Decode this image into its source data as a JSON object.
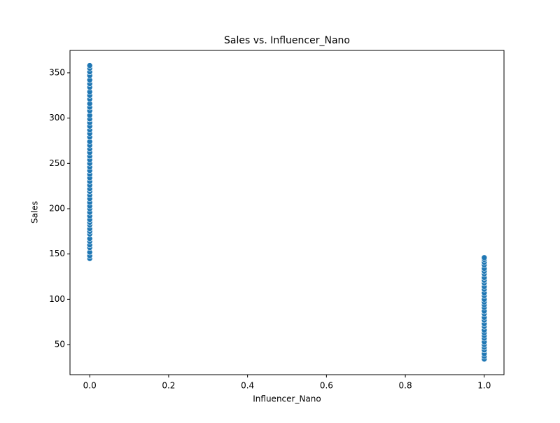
{
  "chart_data": {
    "type": "scatter",
    "title": "Sales vs. Influencer_Nano",
    "x_label": "Influencer_Nano",
    "y_label": "Sales",
    "color": "#1f77b4",
    "x": [
      0,
      0,
      0,
      0,
      0,
      0,
      0,
      0,
      0,
      0,
      0,
      0,
      0,
      0,
      0,
      0,
      0,
      0,
      0,
      0,
      0,
      0,
      0,
      0,
      0,
      0,
      0,
      0,
      0,
      0,
      0,
      0,
      0,
      0,
      0,
      0,
      0,
      0,
      0,
      0,
      0,
      0,
      0,
      0,
      0,
      0,
      0,
      0,
      0,
      0,
      0,
      0,
      0,
      0,
      0,
      1,
      1,
      1,
      1,
      1,
      1,
      1,
      1,
      1,
      1,
      1,
      1,
      1,
      1,
      1,
      1,
      1,
      1,
      1,
      1,
      1,
      1,
      1,
      1,
      1,
      1,
      1,
      1,
      1,
      1,
      1,
      1,
      1,
      1,
      1
    ],
    "values": [
      145,
      148,
      152,
      157,
      160,
      164,
      167,
      172,
      175,
      178,
      182,
      185,
      188,
      192,
      196,
      200,
      203,
      207,
      211,
      215,
      219,
      222,
      226,
      230,
      234,
      238,
      242,
      246,
      250,
      254,
      258,
      262,
      266,
      270,
      274,
      279,
      283,
      287,
      291,
      295,
      299,
      303,
      308,
      312,
      316,
      321,
      325,
      329,
      334,
      338,
      342,
      347,
      351,
      355,
      358,
      34,
      37,
      40,
      44,
      47,
      50,
      53,
      57,
      60,
      63,
      66,
      70,
      73,
      77,
      80,
      84,
      87,
      91,
      94,
      97,
      100,
      104,
      107,
      111,
      114,
      118,
      121,
      124,
      128,
      131,
      134,
      138,
      141,
      144,
      146
    ],
    "xlim": [
      -0.05,
      1.05
    ],
    "ylim": [
      16.8,
      374.7
    ],
    "xticks": [
      {
        "value": 0,
        "label": "0.0"
      },
      0.2,
      0.4,
      0.6,
      0.8,
      {
        "value": 1,
        "label": "1.0"
      }
    ],
    "yticks": [
      50,
      100,
      150,
      200,
      250,
      300,
      350
    ]
  }
}
